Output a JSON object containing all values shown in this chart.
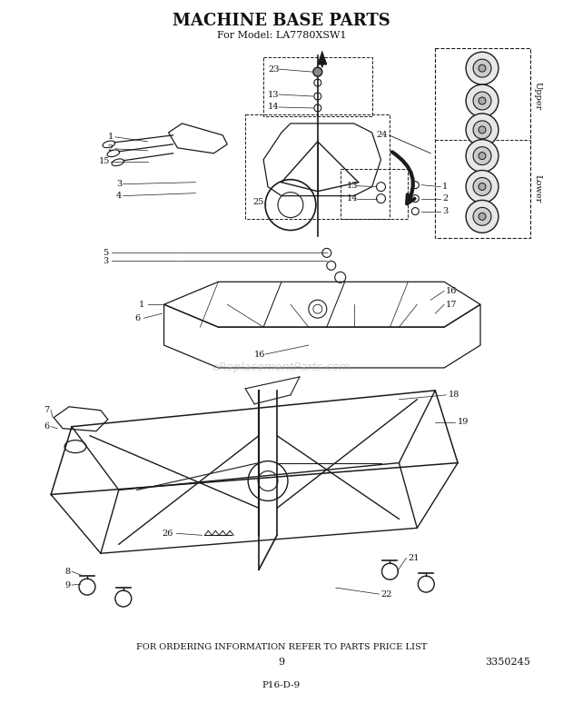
{
  "title": "MACHINE BASE PARTS",
  "subtitle": "For Model: LA7780XSW1",
  "footer_text": "FOR ORDERING INFORMATION REFER TO PARTS PRICE LIST",
  "page_number": "9",
  "part_number": "3350245",
  "doc_code": "P16-D-9",
  "background_color": "#ffffff",
  "text_color": "#111111",
  "watermark": "eReplacementParts.com",
  "upper_label": "Upper",
  "lower_label": "Lower"
}
